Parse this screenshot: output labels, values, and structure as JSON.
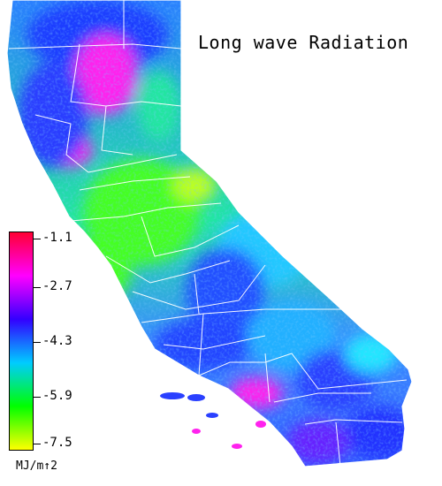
{
  "title": "Long wave Radiation",
  "legend": {
    "unit": "MJ/m↑2",
    "ticks": [
      "-1.1",
      "-2.7",
      "-4.3",
      "-5.9",
      "-7.5"
    ],
    "range": [
      -7.5,
      -1.1
    ],
    "colors": [
      "#ff0033",
      "#ff00ff",
      "#3300ff",
      "#00ccff",
      "#00ff00",
      "#ffff00"
    ]
  },
  "region": "California"
}
